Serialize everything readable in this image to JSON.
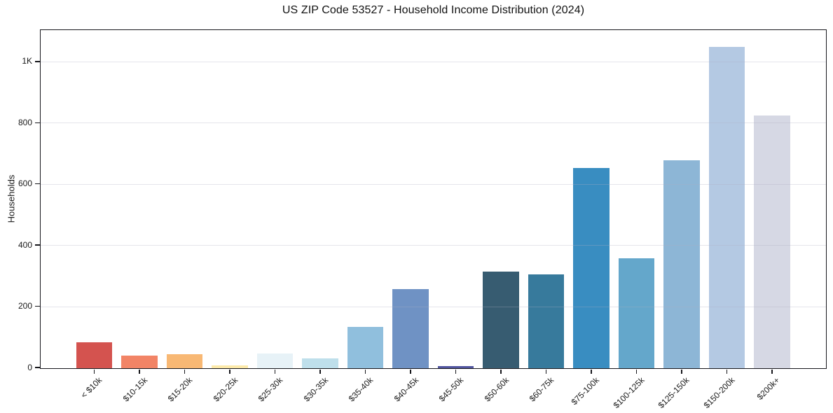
{
  "chart_data": {
    "type": "bar",
    "title": "US ZIP Code 53527 - Household Income Distribution (2024)",
    "xlabel": "",
    "ylabel": "Households",
    "categories": [
      "< $10k",
      "$10-15k",
      "$15-20k",
      "$20-25k",
      "$25-30k",
      "$30-35k",
      "$35-40k",
      "$40-45k",
      "$45-50k",
      "$50-60k",
      "$60-75k",
      "$75-100k",
      "$100-125k",
      "$125-150k",
      "$150-200k",
      "$200k+"
    ],
    "values": [
      85,
      42,
      46,
      9,
      48,
      31,
      134,
      259,
      8,
      316,
      307,
      654,
      359,
      680,
      1050,
      826
    ],
    "bar_colors": [
      "#d4534f",
      "#f28466",
      "#f8b874",
      "#fce9a9",
      "#e7f2f7",
      "#bedfeb",
      "#90bfdd",
      "#6f92c4",
      "#50549e",
      "#375c71",
      "#377a9c",
      "#398dc1",
      "#64a7cb",
      "#8db6d6",
      "#b4c9e3",
      "#d6d8e4"
    ],
    "ylim": [
      0,
      1102
    ],
    "yticks": [
      {
        "value": 0,
        "label": "0"
      },
      {
        "value": 200,
        "label": "200"
      },
      {
        "value": 400,
        "label": "400"
      },
      {
        "value": 600,
        "label": "600"
      },
      {
        "value": 800,
        "label": "800"
      },
      {
        "value": 1000,
        "label": "1K"
      }
    ],
    "grid": "horizontal-light",
    "legend": "none",
    "axis_frame": "full-box"
  }
}
